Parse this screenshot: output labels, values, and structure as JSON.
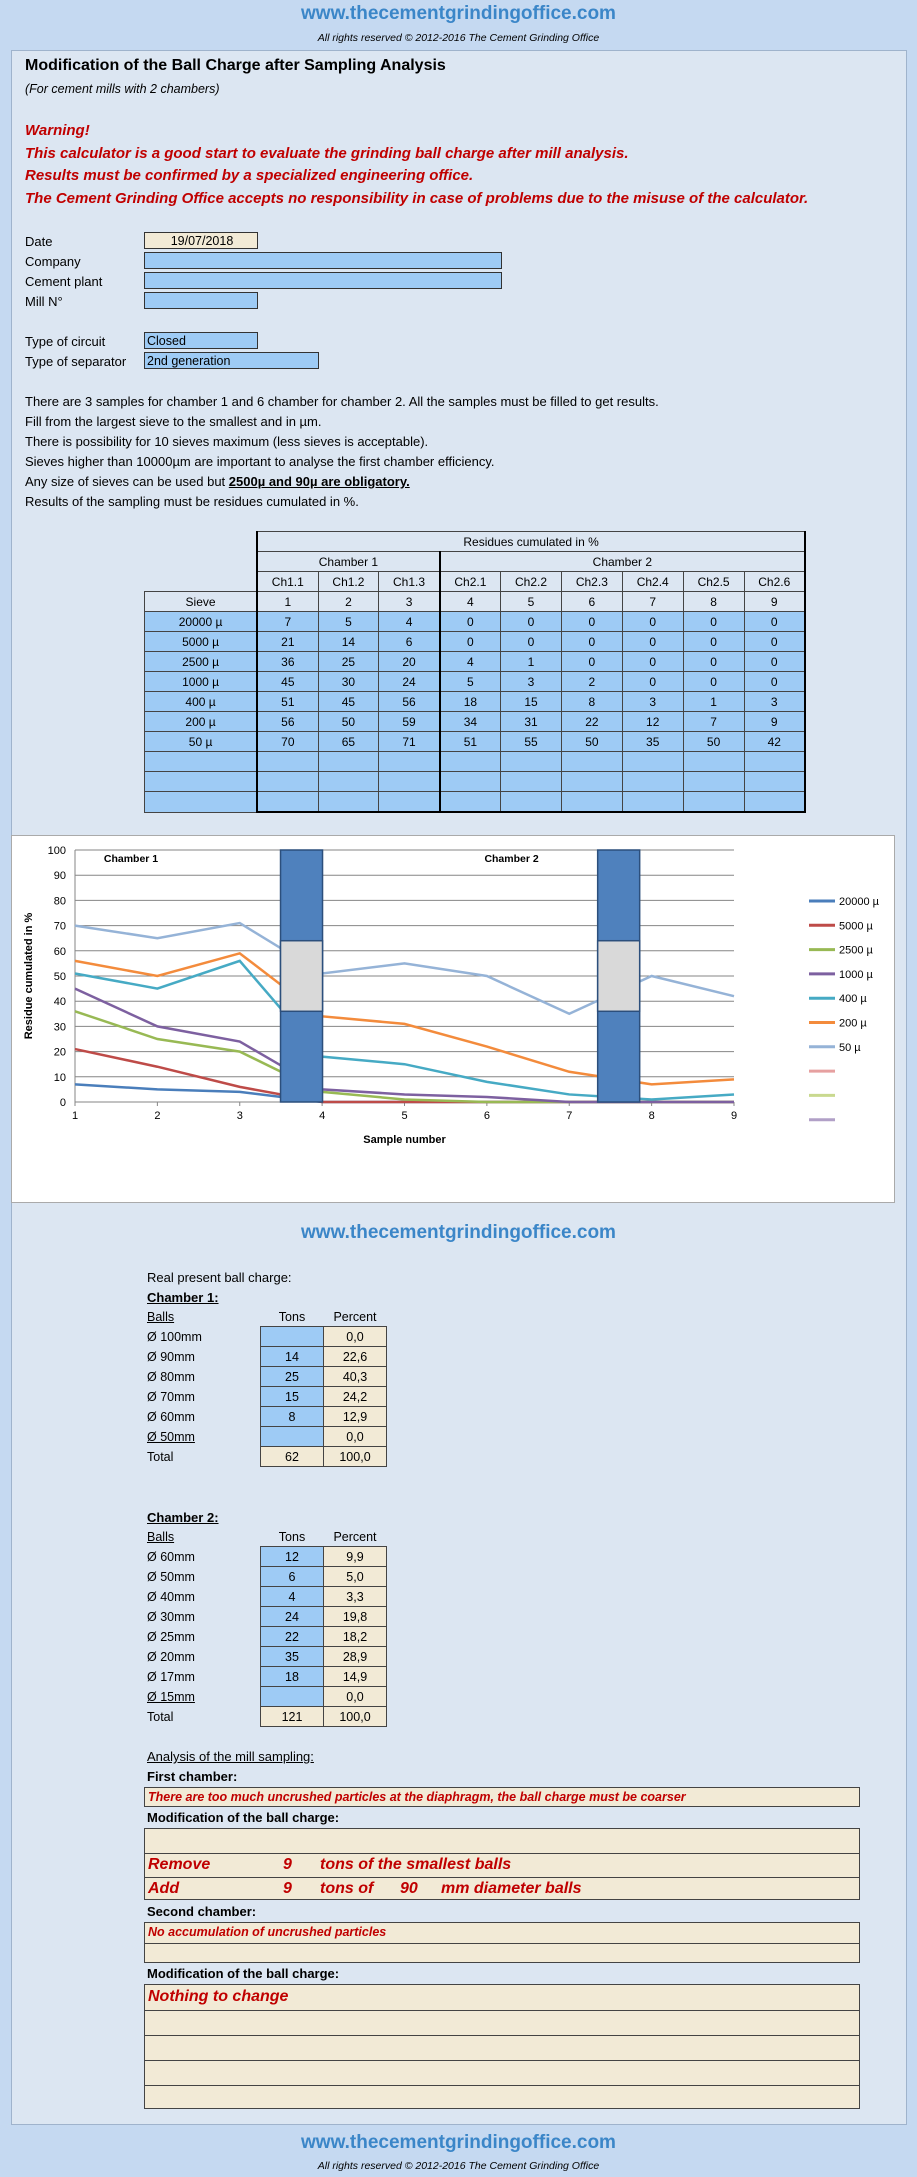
{
  "header": {
    "site": "www.thecementgrindingoffice.com",
    "rights": "All rights reserved © 2012-2016 The Cement Grinding Office"
  },
  "title": "Modification of the Ball Charge after Sampling Analysis",
  "subtitle": "(For cement mills with 2 chambers)",
  "warnings": [
    "Warning!",
    "This calculator is a good start to evaluate the grinding ball charge after mill analysis.",
    "Results must be confirmed by a specialized engineering office.",
    "The Cement Grinding Office accepts no responsibility in case of problems due to the misuse of the calculator."
  ],
  "form": {
    "date_label": "Date",
    "date_value": "19/07/2018",
    "company_label": "Company",
    "plant_label": "Cement plant",
    "mill_label": "Mill N°",
    "circuit_label": "Type of circuit",
    "circuit_value": "Closed",
    "separator_label": "Type of separator",
    "separator_value": "2nd generation"
  },
  "instructions": [
    "There are 3 samples for chamber 1 and 6 chamber for chamber 2. All the samples must be filled to get results.",
    "Fill from the largest sieve to the smallest and in µm.",
    "There is possibility for 10 sieves maximum (less sieves is acceptable).",
    "Sieves higher than 10000µm are important to analyse the first chamber efficiency."
  ],
  "instr5_pre": "Any size of sieves can be used but ",
  "instr5_bold": "2500µ and 90µ are obligatory.",
  "instr6": "Results of the sampling must be residues cumulated in %.",
  "residues": {
    "title": "Residues cumulated in %",
    "chamber1": "Chamber 1",
    "chamber2": "Chamber 2",
    "cols": [
      "Ch1.1",
      "Ch1.2",
      "Ch1.3",
      "Ch2.1",
      "Ch2.2",
      "Ch2.3",
      "Ch2.4",
      "Ch2.5",
      "Ch2.6"
    ],
    "sieve_label": "Sieve",
    "nums": [
      "1",
      "2",
      "3",
      "4",
      "5",
      "6",
      "7",
      "8",
      "9"
    ],
    "rows": [
      {
        "sieve": "20000 µ",
        "v": [
          "7",
          "5",
          "4",
          "0",
          "0",
          "0",
          "0",
          "0",
          "0"
        ]
      },
      {
        "sieve": "5000 µ",
        "v": [
          "21",
          "14",
          "6",
          "0",
          "0",
          "0",
          "0",
          "0",
          "0"
        ]
      },
      {
        "sieve": "2500 µ",
        "v": [
          "36",
          "25",
          "20",
          "4",
          "1",
          "0",
          "0",
          "0",
          "0"
        ]
      },
      {
        "sieve": "1000 µ",
        "v": [
          "45",
          "30",
          "24",
          "5",
          "3",
          "2",
          "0",
          "0",
          "0"
        ]
      },
      {
        "sieve": "400 µ",
        "v": [
          "51",
          "45",
          "56",
          "18",
          "15",
          "8",
          "3",
          "1",
          "3"
        ]
      },
      {
        "sieve": "200 µ",
        "v": [
          "56",
          "50",
          "59",
          "34",
          "31",
          "22",
          "12",
          "7",
          "9"
        ]
      },
      {
        "sieve": "50 µ",
        "v": [
          "70",
          "65",
          "71",
          "51",
          "55",
          "50",
          "35",
          "50",
          "42"
        ]
      }
    ]
  },
  "chart_data": {
    "type": "line",
    "xlabel": "Sample number",
    "ylabel": "Residue cumulated in %",
    "ylim": [
      0,
      100
    ],
    "xlim": [
      1,
      9
    ],
    "yticks": [
      "0",
      "10",
      "20",
      "30",
      "40",
      "50",
      "60",
      "70",
      "80",
      "90",
      "100"
    ],
    "xticks": [
      "1",
      "2",
      "3",
      "4",
      "5",
      "6",
      "7",
      "8",
      "9"
    ],
    "annotations": [
      "Chamber 1",
      "Chamber 2"
    ],
    "series": [
      {
        "name": "20000 µ",
        "color": "#4a7ebb",
        "values": [
          7,
          5,
          4,
          0,
          0,
          0,
          0,
          0,
          0
        ]
      },
      {
        "name": "5000 µ",
        "color": "#be4b48",
        "values": [
          21,
          14,
          6,
          0,
          0,
          0,
          0,
          0,
          0
        ]
      },
      {
        "name": "2500 µ",
        "color": "#98b954",
        "values": [
          36,
          25,
          20,
          4,
          1,
          0,
          0,
          0,
          0
        ]
      },
      {
        "name": "1000 µ",
        "color": "#7d60a0",
        "values": [
          45,
          30,
          24,
          5,
          3,
          2,
          0,
          0,
          0
        ]
      },
      {
        "name": "400 µ",
        "color": "#46aac4",
        "values": [
          51,
          45,
          56,
          18,
          15,
          8,
          3,
          1,
          3
        ]
      },
      {
        "name": "200 µ",
        "color": "#f38b3c",
        "values": [
          56,
          50,
          59,
          34,
          31,
          22,
          12,
          7,
          9
        ]
      },
      {
        "name": "50 µ",
        "color": "#95b3d7",
        "values": [
          70,
          65,
          71,
          51,
          55,
          50,
          35,
          50,
          42
        ]
      }
    ],
    "extra_legend_colors": [
      "#e6a0a0",
      "#c9d98f",
      "#b1a0c7"
    ]
  },
  "ball": {
    "intro": "Real present ball charge:",
    "ch1_title": "Chamber 1:",
    "balls_label": "Balls",
    "tons_label": "Tons",
    "percent_label": "Percent",
    "total_label": "Total",
    "ch1": [
      {
        "d": "Ø 100mm",
        "t": "",
        "p": "0,0"
      },
      {
        "d": "Ø 90mm",
        "t": "14",
        "p": "22,6"
      },
      {
        "d": "Ø 80mm",
        "t": "25",
        "p": "40,3"
      },
      {
        "d": "Ø 70mm",
        "t": "15",
        "p": "24,2"
      },
      {
        "d": "Ø 60mm",
        "t": "8",
        "p": "12,9"
      },
      {
        "d": "Ø 50mm",
        "t": "",
        "p": "0,0"
      }
    ],
    "ch1_total": {
      "t": "62",
      "p": "100,0"
    },
    "ch2_title": "Chamber 2:",
    "ch2": [
      {
        "d": "Ø 60mm",
        "t": "12",
        "p": "9,9"
      },
      {
        "d": "Ø 50mm",
        "t": "6",
        "p": "5,0"
      },
      {
        "d": "Ø 40mm",
        "t": "4",
        "p": "3,3"
      },
      {
        "d": "Ø 30mm",
        "t": "24",
        "p": "19,8"
      },
      {
        "d": "Ø 25mm",
        "t": "22",
        "p": "18,2"
      },
      {
        "d": "Ø 20mm",
        "t": "35",
        "p": "28,9"
      },
      {
        "d": "Ø 17mm",
        "t": "18",
        "p": "14,9"
      },
      {
        "d": "Ø 15mm",
        "t": "",
        "p": "0,0"
      }
    ],
    "ch2_total": {
      "t": "121",
      "p": "100,0"
    }
  },
  "analysis": {
    "title": "Analysis of the mill sampling:",
    "first": "First chamber:",
    "first_result": "There are too much uncrushed particles at the diaphragm, the ball charge must be coarser",
    "mod": "Modification of the ball charge:",
    "remove_word": "Remove",
    "remove_tons": "9",
    "remove_text": "tons of the smallest balls",
    "add_word": "Add",
    "add_tons": "9",
    "add_text": "tons of",
    "add_diam": "90",
    "add_tail": "mm diameter balls",
    "second": "Second chamber:",
    "second_result": "No accumulation of uncrushed particles",
    "mod2": "Modification of the ball charge:",
    "mod2_result": "Nothing to change"
  }
}
